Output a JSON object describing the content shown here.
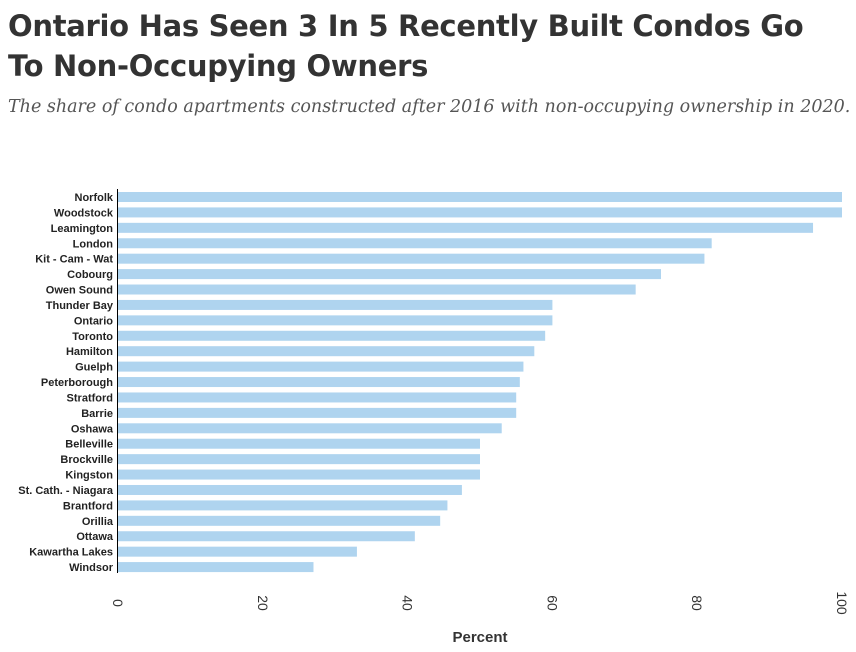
{
  "header": {
    "title": "Ontario Has Seen 3 In 5 Recently Built Condos Go To Non-Occupying Owners",
    "subtitle": "The share of condo apartments constructed after 2016 with non-occupying ownership in 2020."
  },
  "colors": {
    "bar": "#afd4ef",
    "axis": "#000000"
  },
  "chart_data": {
    "type": "bar",
    "orientation": "horizontal",
    "title": "Ontario Has Seen 3 In 5 Recently Built Condos Go To Non-Occupying Owners",
    "subtitle": "The share of condo apartments constructed after 2016 with non-occupying ownership in 2020.",
    "xlabel": "Percent",
    "ylabel": "",
    "xlim": [
      0,
      100
    ],
    "xticks": [
      0,
      20,
      40,
      60,
      80,
      100
    ],
    "grid": false,
    "categories": [
      "Norfolk",
      "Woodstock",
      "Leamington",
      "London",
      "Kit - Cam - Wat",
      "Cobourg",
      "Owen Sound",
      "Thunder Bay",
      "Ontario",
      "Toronto",
      "Hamilton",
      "Guelph",
      "Peterborough",
      "Stratford",
      "Barrie",
      "Oshawa",
      "Belleville",
      "Brockville",
      "Kingston",
      "St. Cath. - Niagara",
      "Brantford",
      "Orillia",
      "Ottawa",
      "Kawartha Lakes",
      "Windsor"
    ],
    "values": [
      100,
      100,
      96,
      82,
      81,
      75,
      71.5,
      60,
      60,
      59,
      57.5,
      56,
      55.5,
      55,
      55,
      53,
      50,
      50,
      50,
      47.5,
      45.5,
      44.5,
      41,
      33,
      27
    ]
  }
}
